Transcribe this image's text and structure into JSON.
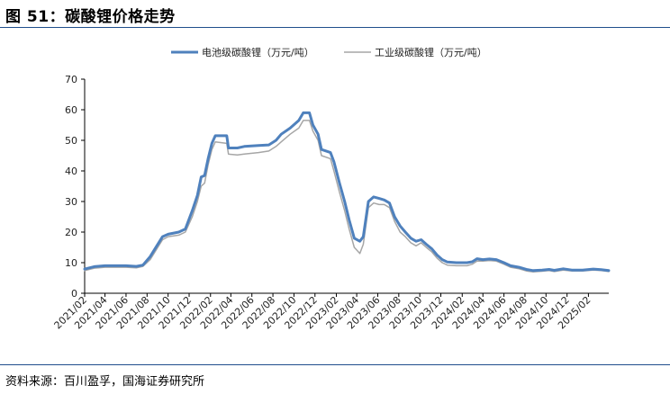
{
  "figure": {
    "title": "图 51：碳酸锂价格走势",
    "source": "资料来源：百川盈孚，国海证券研究所"
  },
  "colors": {
    "battery": "#4f81bd",
    "industrial": "#a6a6a6",
    "axis": "#000000",
    "rule": "#1f4e8c"
  },
  "chart_data": {
    "type": "line",
    "title": "",
    "xlabel": "",
    "ylabel": "",
    "ylim": [
      0,
      70
    ],
    "yticks": [
      0,
      10,
      20,
      30,
      40,
      50,
      60,
      70
    ],
    "xlim": [
      "2021-02",
      "2025-04"
    ],
    "xticks": [
      "2021/02",
      "2021/04",
      "2021/06",
      "2021/08",
      "2021/10",
      "2021/12",
      "2022/02",
      "2022/04",
      "2022/06",
      "2022/08",
      "2022/10",
      "2022/12",
      "2023/02",
      "2023/04",
      "2023/06",
      "2023/08",
      "2023/10",
      "2023/12",
      "2024/02",
      "2024/04",
      "2024/06",
      "2024/08",
      "2024/10",
      "2024/12",
      "2025/02"
    ],
    "grid": false,
    "legend": "top-center",
    "series": [
      {
        "name": "电池级碳酸锂（万元/吨）",
        "points": [
          [
            "2021-02-01",
            7.9
          ],
          [
            "2021-03-01",
            8.7
          ],
          [
            "2021-04-01",
            9.0
          ],
          [
            "2021-05-01",
            9.0
          ],
          [
            "2021-06-01",
            9.0
          ],
          [
            "2021-07-01",
            8.8
          ],
          [
            "2021-07-20",
            9.2
          ],
          [
            "2021-08-10",
            12.0
          ],
          [
            "2021-09-01",
            16.0
          ],
          [
            "2021-09-15",
            18.5
          ],
          [
            "2021-10-01",
            19.3
          ],
          [
            "2021-11-01",
            20.0
          ],
          [
            "2021-11-20",
            21.0
          ],
          [
            "2021-12-10",
            27.0
          ],
          [
            "2021-12-25",
            32.0
          ],
          [
            "2022-01-05",
            38.0
          ],
          [
            "2022-01-15",
            38.5
          ],
          [
            "2022-01-25",
            44.0
          ],
          [
            "2022-02-05",
            49.0
          ],
          [
            "2022-02-15",
            51.5
          ],
          [
            "2022-03-20",
            51.5
          ],
          [
            "2022-03-25",
            47.5
          ],
          [
            "2022-04-20",
            47.5
          ],
          [
            "2022-05-10",
            48.0
          ],
          [
            "2022-06-20",
            48.3
          ],
          [
            "2022-07-20",
            48.5
          ],
          [
            "2022-08-10",
            50.0
          ],
          [
            "2022-08-25",
            52.0
          ],
          [
            "2022-09-20",
            54.0
          ],
          [
            "2022-10-15",
            56.5
          ],
          [
            "2022-10-28",
            59.0
          ],
          [
            "2022-11-15",
            59.0
          ],
          [
            "2022-11-25",
            55.0
          ],
          [
            "2022-12-10",
            52.0
          ],
          [
            "2022-12-20",
            47.0
          ],
          [
            "2023-01-15",
            46.0
          ],
          [
            "2023-01-25",
            43.0
          ],
          [
            "2023-02-10",
            36.0
          ],
          [
            "2023-02-25",
            30.0
          ],
          [
            "2023-03-10",
            24.0
          ],
          [
            "2023-03-25",
            18.0
          ],
          [
            "2023-04-10",
            17.0
          ],
          [
            "2023-04-20",
            18.5
          ],
          [
            "2023-05-05",
            30.0
          ],
          [
            "2023-05-20",
            31.5
          ],
          [
            "2023-06-05",
            31.0
          ],
          [
            "2023-06-20",
            30.5
          ],
          [
            "2023-07-05",
            29.5
          ],
          [
            "2023-07-20",
            25.0
          ],
          [
            "2023-08-05",
            22.0
          ],
          [
            "2023-08-20",
            20.0
          ],
          [
            "2023-09-05",
            18.0
          ],
          [
            "2023-09-20",
            17.0
          ],
          [
            "2023-10-05",
            17.5
          ],
          [
            "2023-10-20",
            16.0
          ],
          [
            "2023-11-05",
            14.5
          ],
          [
            "2023-11-20",
            12.5
          ],
          [
            "2023-12-05",
            11.0
          ],
          [
            "2023-12-20",
            10.2
          ],
          [
            "2024-01-15",
            10.0
          ],
          [
            "2024-02-15",
            10.0
          ],
          [
            "2024-03-01",
            10.3
          ],
          [
            "2024-03-15",
            11.3
          ],
          [
            "2024-04-01",
            11.0
          ],
          [
            "2024-04-20",
            11.2
          ],
          [
            "2024-05-10",
            11.0
          ],
          [
            "2024-06-01",
            10.0
          ],
          [
            "2024-06-20",
            9.0
          ],
          [
            "2024-07-15",
            8.5
          ],
          [
            "2024-08-05",
            7.8
          ],
          [
            "2024-08-25",
            7.4
          ],
          [
            "2024-09-20",
            7.6
          ],
          [
            "2024-10-10",
            7.8
          ],
          [
            "2024-10-25",
            7.5
          ],
          [
            "2024-11-20",
            8.0
          ],
          [
            "2024-12-15",
            7.6
          ],
          [
            "2025-01-15",
            7.6
          ],
          [
            "2025-02-15",
            7.9
          ],
          [
            "2025-03-10",
            7.7
          ],
          [
            "2025-04-01",
            7.4
          ]
        ]
      },
      {
        "name": "工业级碳酸锂（万元/吨）",
        "points": [
          [
            "2021-02-01",
            7.4
          ],
          [
            "2021-03-01",
            8.2
          ],
          [
            "2021-04-01",
            8.5
          ],
          [
            "2021-05-01",
            8.5
          ],
          [
            "2021-06-01",
            8.5
          ],
          [
            "2021-07-01",
            8.3
          ],
          [
            "2021-07-20",
            8.8
          ],
          [
            "2021-08-10",
            11.0
          ],
          [
            "2021-09-01",
            15.0
          ],
          [
            "2021-09-15",
            17.5
          ],
          [
            "2021-10-01",
            18.5
          ],
          [
            "2021-11-01",
            19.0
          ],
          [
            "2021-11-20",
            20.0
          ],
          [
            "2021-12-10",
            25.0
          ],
          [
            "2021-12-25",
            30.0
          ],
          [
            "2022-01-05",
            35.0
          ],
          [
            "2022-01-15",
            36.0
          ],
          [
            "2022-01-25",
            42.0
          ],
          [
            "2022-02-05",
            47.0
          ],
          [
            "2022-02-15",
            49.5
          ],
          [
            "2022-03-20",
            49.0
          ],
          [
            "2022-03-25",
            45.5
          ],
          [
            "2022-04-20",
            45.2
          ],
          [
            "2022-05-10",
            45.5
          ],
          [
            "2022-06-20",
            46.0
          ],
          [
            "2022-07-20",
            46.5
          ],
          [
            "2022-08-10",
            48.0
          ],
          [
            "2022-08-25",
            49.5
          ],
          [
            "2022-09-20",
            52.0
          ],
          [
            "2022-10-15",
            54.0
          ],
          [
            "2022-10-28",
            56.5
          ],
          [
            "2022-11-15",
            56.5
          ],
          [
            "2022-11-25",
            53.0
          ],
          [
            "2022-12-10",
            50.0
          ],
          [
            "2022-12-20",
            45.0
          ],
          [
            "2023-01-15",
            44.0
          ],
          [
            "2023-01-25",
            40.0
          ],
          [
            "2023-02-10",
            33.0
          ],
          [
            "2023-02-25",
            27.0
          ],
          [
            "2023-03-10",
            21.0
          ],
          [
            "2023-03-25",
            15.0
          ],
          [
            "2023-04-10",
            13.0
          ],
          [
            "2023-04-20",
            16.0
          ],
          [
            "2023-05-05",
            28.0
          ],
          [
            "2023-05-20",
            29.5
          ],
          [
            "2023-06-05",
            29.0
          ],
          [
            "2023-06-20",
            29.0
          ],
          [
            "2023-07-05",
            28.0
          ],
          [
            "2023-07-20",
            23.5
          ],
          [
            "2023-08-05",
            20.0
          ],
          [
            "2023-08-20",
            18.5
          ],
          [
            "2023-09-05",
            16.5
          ],
          [
            "2023-09-20",
            15.5
          ],
          [
            "2023-10-05",
            16.5
          ],
          [
            "2023-10-20",
            15.0
          ],
          [
            "2023-11-05",
            13.5
          ],
          [
            "2023-11-20",
            11.5
          ],
          [
            "2023-12-05",
            10.0
          ],
          [
            "2023-12-20",
            9.2
          ],
          [
            "2024-01-15",
            9.0
          ],
          [
            "2024-02-15",
            9.0
          ],
          [
            "2024-03-01",
            9.5
          ],
          [
            "2024-03-15",
            10.5
          ],
          [
            "2024-04-01",
            10.5
          ],
          [
            "2024-04-20",
            10.7
          ],
          [
            "2024-05-10",
            10.5
          ],
          [
            "2024-06-01",
            9.5
          ],
          [
            "2024-06-20",
            8.5
          ],
          [
            "2024-07-15",
            8.0
          ],
          [
            "2024-08-05",
            7.3
          ],
          [
            "2024-08-25",
            7.0
          ],
          [
            "2024-09-20",
            7.2
          ],
          [
            "2024-10-10",
            7.4
          ],
          [
            "2024-10-25",
            7.1
          ],
          [
            "2024-11-20",
            7.6
          ],
          [
            "2024-12-15",
            7.3
          ],
          [
            "2025-01-15",
            7.3
          ],
          [
            "2025-02-15",
            7.6
          ],
          [
            "2025-03-10",
            7.4
          ],
          [
            "2025-04-01",
            7.1
          ]
        ]
      }
    ]
  }
}
